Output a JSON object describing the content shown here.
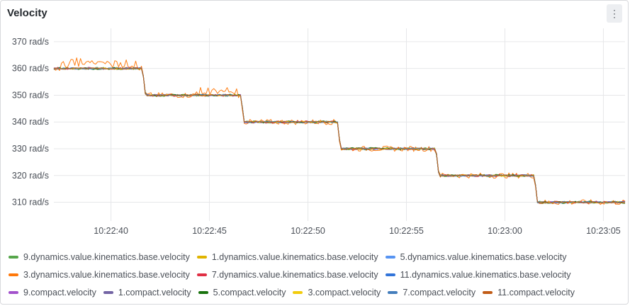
{
  "panel": {
    "title": "Velocity"
  },
  "chart_data": {
    "type": "line",
    "title": "Velocity",
    "y_unit": "rad/s",
    "ylim": [
      303,
      375
    ],
    "y_ticks": [
      310,
      320,
      330,
      340,
      350,
      360,
      370
    ],
    "y_tick_labels": [
      "310 rad/s",
      "320 rad/s",
      "330 rad/s",
      "340 rad/s",
      "350 rad/s",
      "360 rad/s",
      "370 rad/s"
    ],
    "xlim": [
      "10:22:37.1",
      "10:23:06.1"
    ],
    "x_ticks": [
      "10:22:40",
      "10:22:45",
      "10:22:50",
      "10:22:55",
      "10:23:00",
      "10:23:05"
    ],
    "grid": true,
    "legend_position": "bottom",
    "steps": [
      {
        "from": "10:22:37.1",
        "to": "10:22:41.6",
        "value": 360
      },
      {
        "from": "10:22:41.6",
        "to": "10:22:46.6",
        "value": 350
      },
      {
        "from": "10:22:46.6",
        "to": "10:22:51.5",
        "value": 340
      },
      {
        "from": "10:22:51.5",
        "to": "10:22:56.5",
        "value": 330
      },
      {
        "from": "10:22:56.5",
        "to": "10:23:01.5",
        "value": 320
      },
      {
        "from": "10:23:01.5",
        "to": "10:23:06.1",
        "value": 310
      }
    ],
    "series": [
      {
        "name": "9.dynamics.value.kinematics.base.velocity",
        "color": "#56a64b"
      },
      {
        "name": "1.dynamics.value.kinematics.base.velocity",
        "color": "#e0b400"
      },
      {
        "name": "5.dynamics.value.kinematics.base.velocity",
        "color": "#5794f2"
      },
      {
        "name": "3.dynamics.value.kinematics.base.velocity",
        "color": "#ff780a"
      },
      {
        "name": "7.dynamics.value.kinematics.base.velocity",
        "color": "#e02f44"
      },
      {
        "name": "11.dynamics.value.kinematics.base.velocity",
        "color": "#3274d9"
      },
      {
        "name": "9.compact.velocity",
        "color": "#a352cc"
      },
      {
        "name": "1.compact.velocity",
        "color": "#7364a4"
      },
      {
        "name": "5.compact.velocity",
        "color": "#19730e"
      },
      {
        "name": "3.compact.velocity",
        "color": "#f2cc0c"
      },
      {
        "name": "7.compact.velocity",
        "color": "#447ebc"
      },
      {
        "name": "11.compact.velocity",
        "color": "#c15c17"
      }
    ],
    "legend_rows": [
      [
        0,
        1,
        2
      ],
      [
        3,
        4,
        5
      ],
      [
        6,
        7,
        8,
        9,
        10,
        11
      ]
    ]
  }
}
